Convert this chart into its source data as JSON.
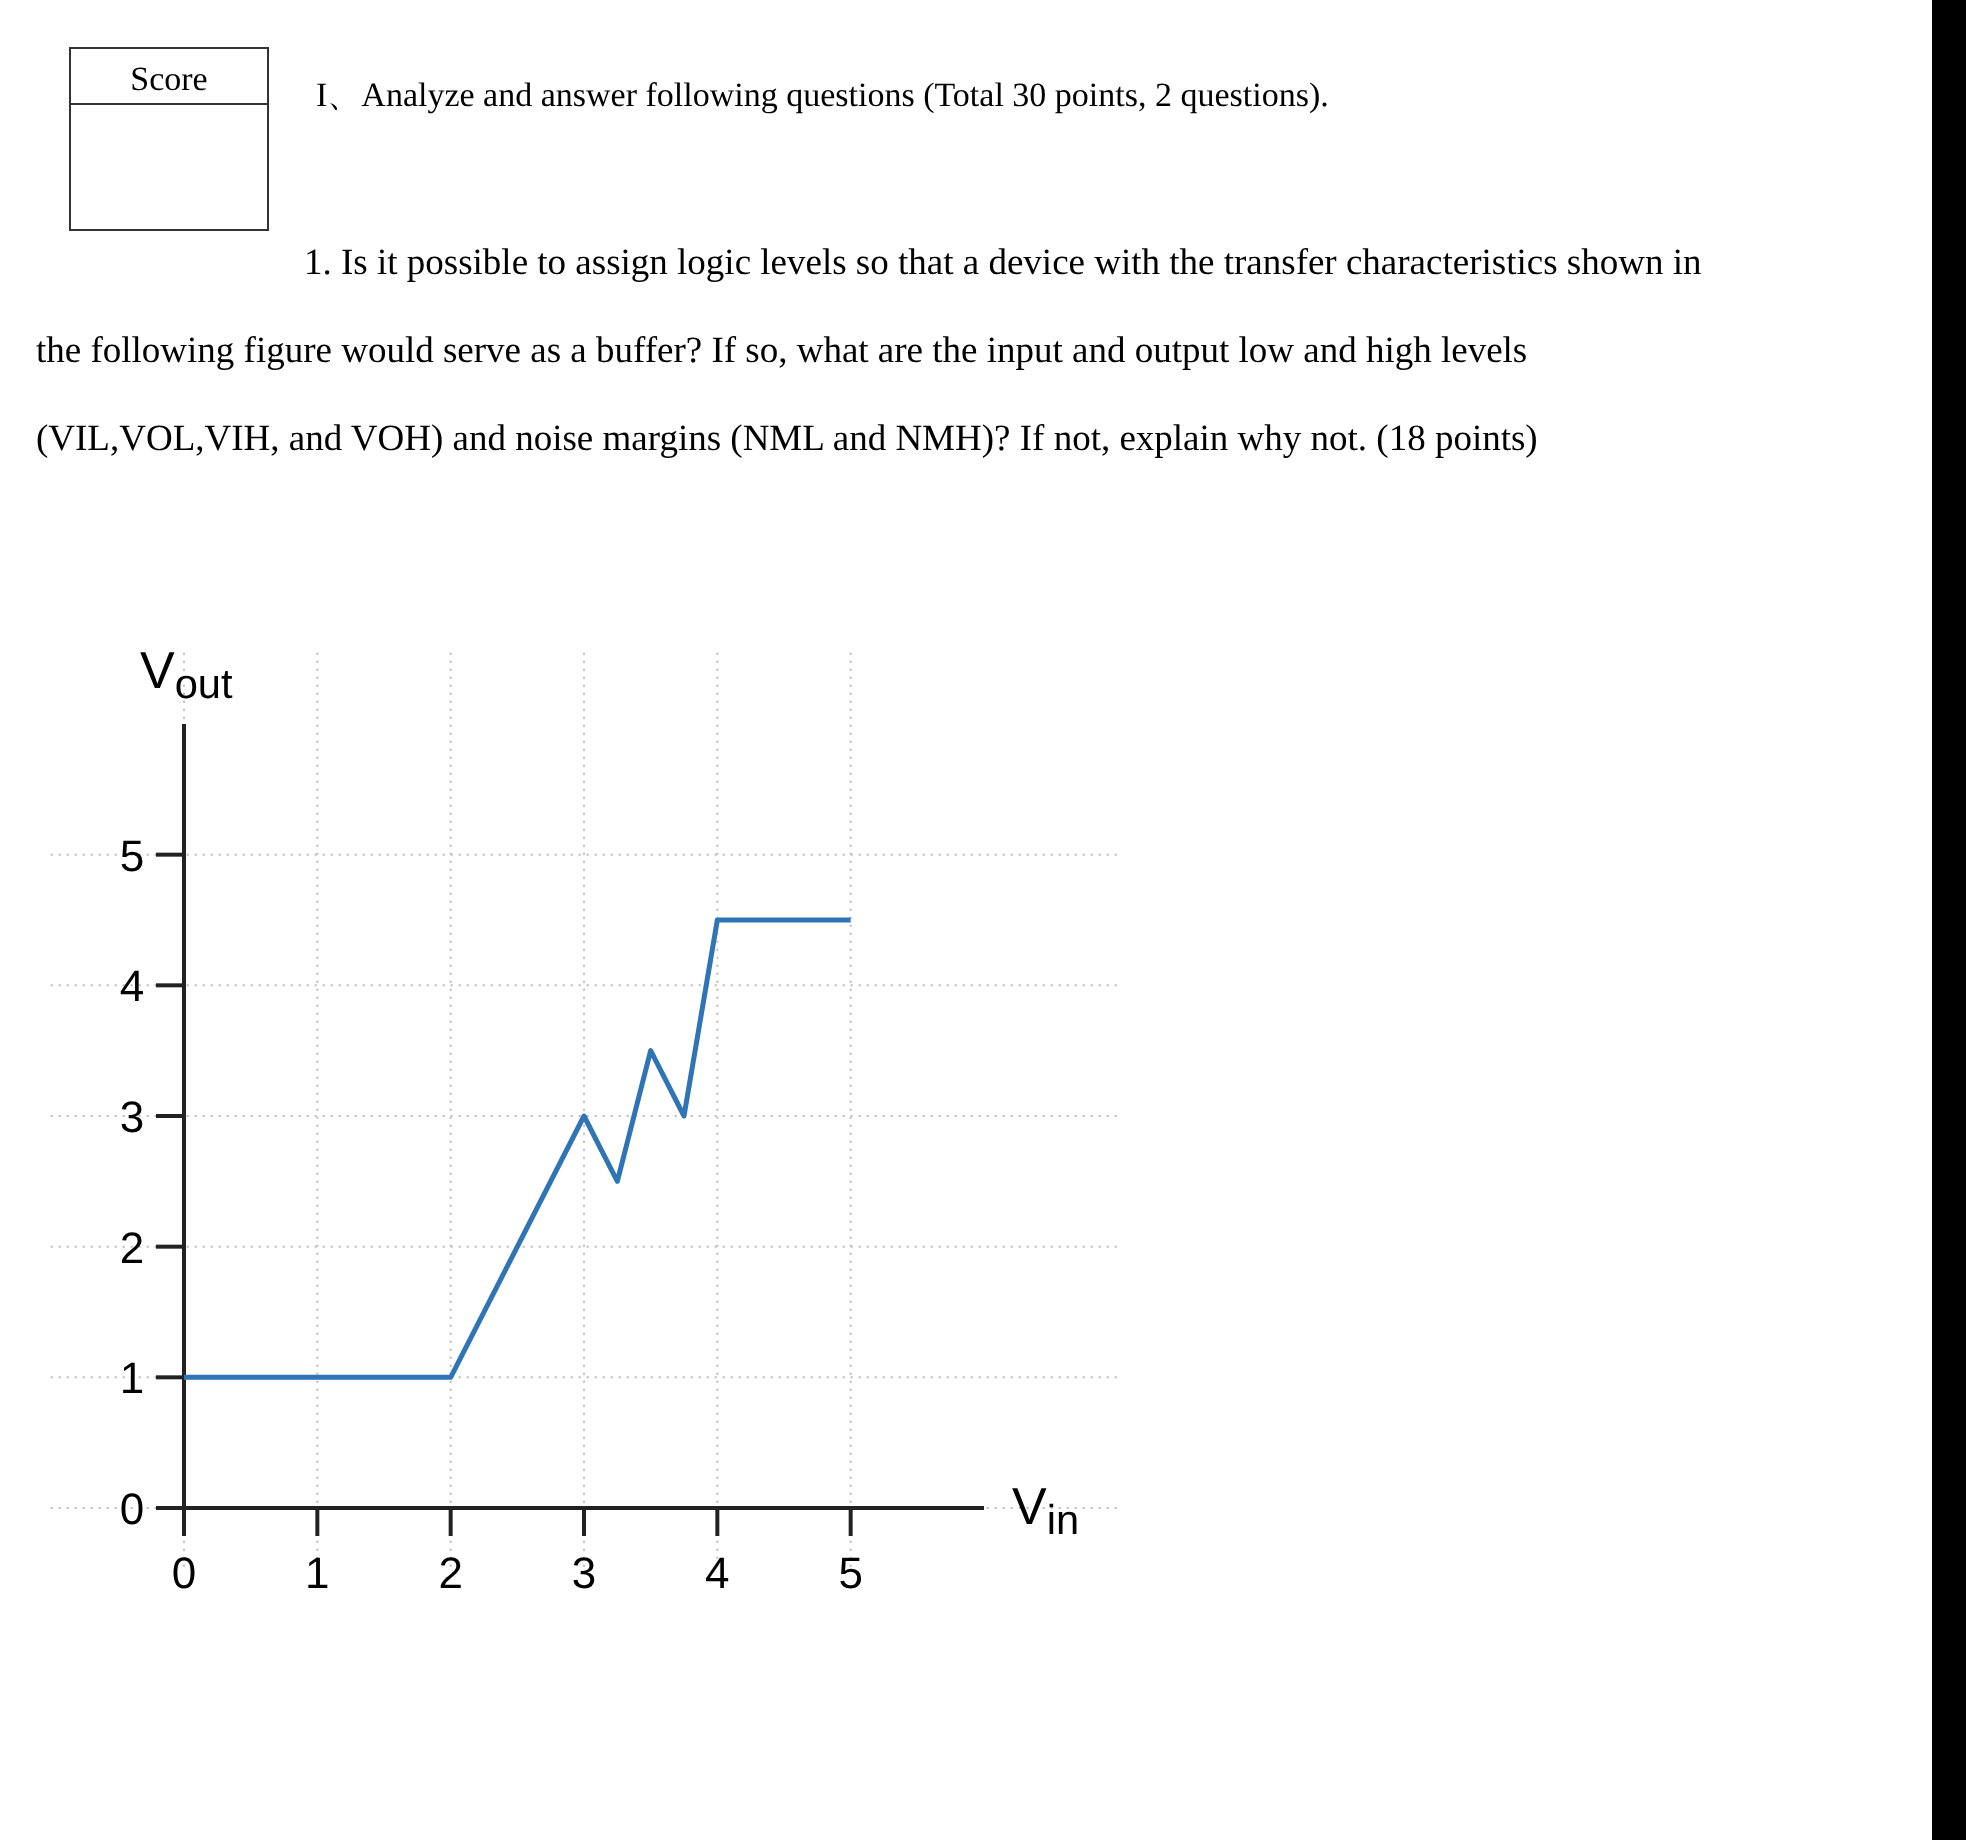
{
  "chart_data": {
    "type": "line",
    "title": "I、Analyze and answer following questions (Total 30 points, 2 questions).",
    "annotations": [
      "Score",
      "1. Is it possible to assign logic levels so that a device with the transfer characteristics shown in the following figure would serve as a buffer? If so, what are the input and output low and high levels (VIL,VOL,VIH, and VOH) and noise margins (NML and NMH)? If not, explain why not. (18 points)"
    ],
    "xlabel": "V$_{in}$",
    "ylabel": "V$_{out}$",
    "x": [
      0,
      2,
      3,
      3.25,
      3.5,
      3.75,
      4,
      5
    ],
    "series": [
      {
        "color": "#2f74b5",
        "values": [
          1,
          1,
          3,
          2.5,
          3.5,
          3,
          4.5,
          4.5
        ]
      }
    ],
    "xlim": [
      0,
      6
    ],
    "ylim": [
      0,
      6
    ],
    "xticks": [
      0,
      1,
      2,
      3,
      4,
      5
    ],
    "yticks": [
      0,
      1,
      2,
      3,
      4,
      5
    ],
    "grid": true,
    "marker": "none",
    "line_style": "solid"
  }
}
